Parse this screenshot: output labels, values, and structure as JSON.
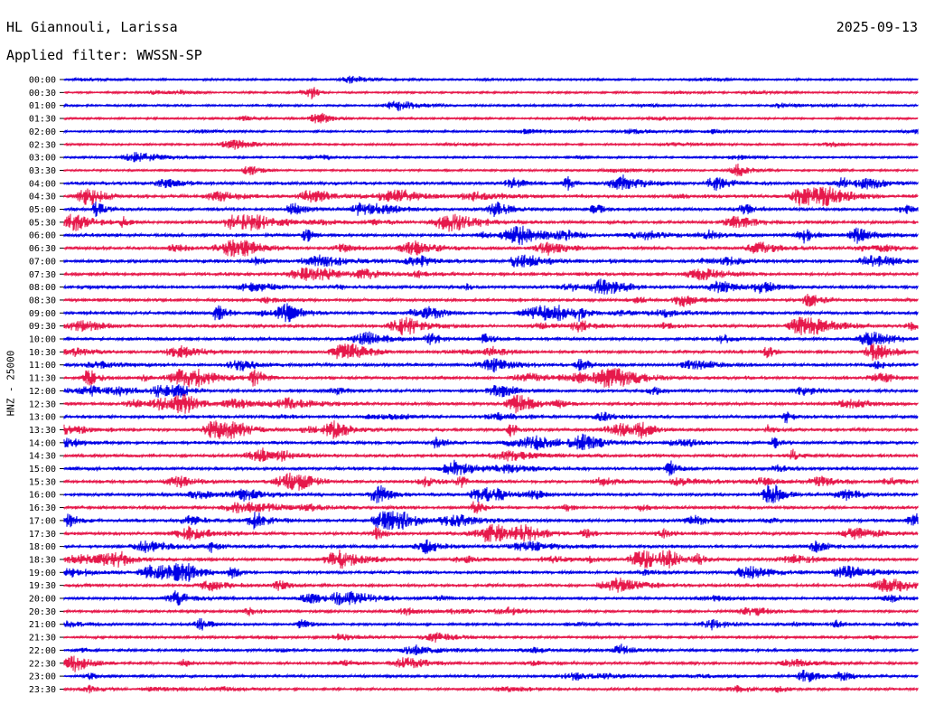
{
  "chart_data": {
    "type": "line",
    "title": "HL Giannouli, Larissa",
    "date": "2025-09-13",
    "subtitle": "Applied filter: WWSSN-SP",
    "ylabel": "HNZ - 25000",
    "tick_labels": [
      "00:00",
      "00:30",
      "01:00",
      "01:30",
      "02:00",
      "02:30",
      "03:00",
      "03:30",
      "04:00",
      "04:30",
      "05:00",
      "05:30",
      "06:00",
      "06:30",
      "07:00",
      "07:30",
      "08:00",
      "08:30",
      "09:00",
      "09:30",
      "10:00",
      "10:30",
      "11:00",
      "11:30",
      "12:00",
      "12:30",
      "13:00",
      "13:30",
      "14:00",
      "14:30",
      "15:00",
      "15:30",
      "16:00",
      "16:30",
      "17:00",
      "17:30",
      "18:00",
      "18:30",
      "19:00",
      "19:30",
      "20:00",
      "20:30",
      "21:00",
      "21:30",
      "22:00",
      "22:30",
      "23:00",
      "23:30"
    ],
    "series_colors": [
      "#0000e6",
      "#e6194b"
    ],
    "grid": false,
    "legend": "none"
  }
}
